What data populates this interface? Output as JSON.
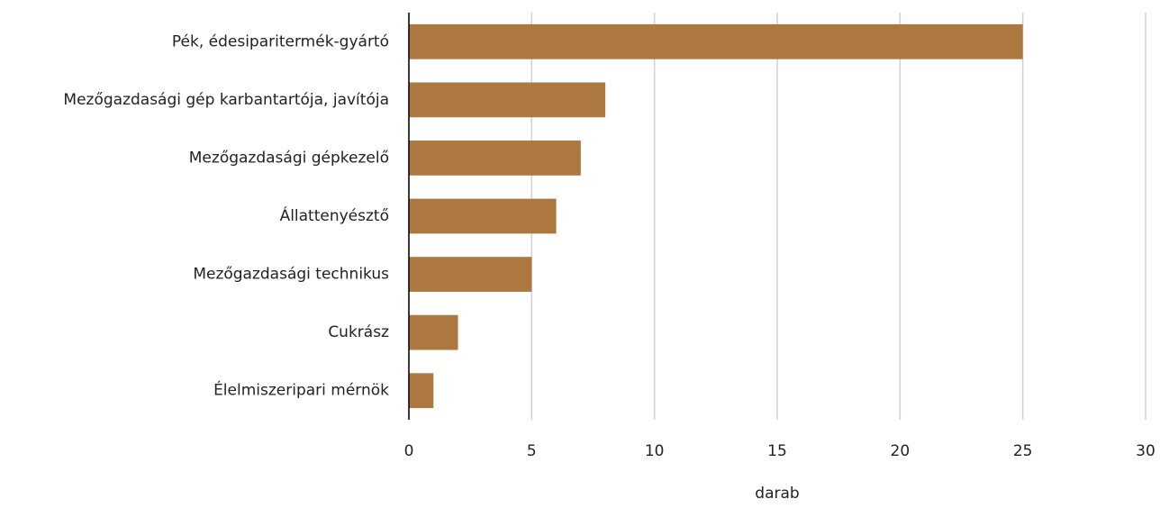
{
  "chart_data": {
    "type": "barh",
    "x_label": "darab",
    "categories": [
      "Pék, édesiparitermék-gyártó",
      "Mezőgazdasági gép karbantartója, javítója",
      "Mezőgazdasági gépkezelő",
      "Állattenyésztő",
      "Mezőgazdasági technikus",
      "Cukrász",
      "Élelmiszeripari mérnök"
    ],
    "values": [
      25,
      8,
      7,
      6,
      5,
      2,
      1
    ],
    "color": "#ad7840",
    "xlim": [
      0,
      30
    ],
    "xticks": [
      0,
      5,
      10,
      15,
      20,
      25,
      30
    ],
    "grid": true
  }
}
